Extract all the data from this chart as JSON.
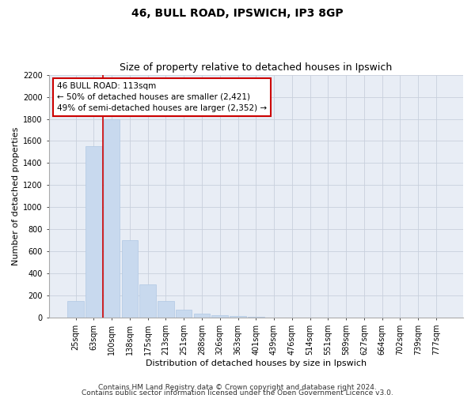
{
  "title1": "46, BULL ROAD, IPSWICH, IP3 8GP",
  "title2": "Size of property relative to detached houses in Ipswich",
  "xlabel": "Distribution of detached houses by size in Ipswich",
  "ylabel": "Number of detached properties",
  "categories": [
    "25sqm",
    "63sqm",
    "100sqm",
    "138sqm",
    "175sqm",
    "213sqm",
    "251sqm",
    "288sqm",
    "326sqm",
    "363sqm",
    "401sqm",
    "439sqm",
    "476sqm",
    "514sqm",
    "551sqm",
    "589sqm",
    "627sqm",
    "664sqm",
    "702sqm",
    "739sqm",
    "777sqm"
  ],
  "values": [
    150,
    1550,
    1800,
    700,
    300,
    150,
    75,
    40,
    25,
    15,
    10,
    5,
    3,
    2,
    1,
    1,
    1,
    0,
    0,
    0,
    0
  ],
  "bar_color": "#c8d9ee",
  "bar_edge_color": "#b0c8e4",
  "grid_color": "#c8d0dc",
  "background_color": "#e8edf5",
  "property_line_color": "#cc0000",
  "annotation_text": "46 BULL ROAD: 113sqm\n← 50% of detached houses are smaller (2,421)\n49% of semi-detached houses are larger (2,352) →",
  "annotation_box_edgecolor": "#cc0000",
  "ylim": [
    0,
    2200
  ],
  "yticks": [
    0,
    200,
    400,
    600,
    800,
    1000,
    1200,
    1400,
    1600,
    1800,
    2000,
    2200
  ],
  "footer1": "Contains HM Land Registry data © Crown copyright and database right 2024.",
  "footer2": "Contains public sector information licensed under the Open Government Licence v3.0.",
  "title1_fontsize": 10,
  "title2_fontsize": 9,
  "axis_label_fontsize": 8,
  "tick_fontsize": 7,
  "annotation_fontsize": 7.5,
  "footer_fontsize": 6.5
}
